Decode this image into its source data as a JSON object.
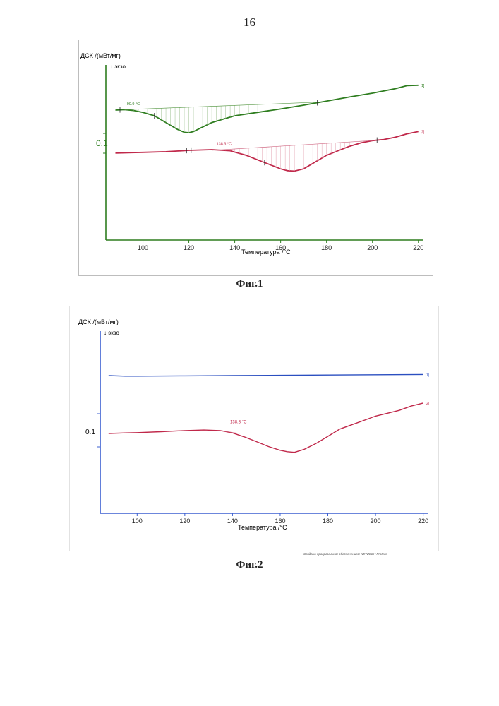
{
  "page_number": "16",
  "credit": "Создано программным обеспечением NETZSCH Proteus",
  "colors": {
    "curve1_fig1": "#2e7d1f",
    "curve2": "#c0284a",
    "curve1_fig2": "#2b4fc0",
    "axis_fig1": "#2e7d1f",
    "axis_fig2": "#3b5fd0"
  },
  "figures": [
    {
      "caption": "Фиг.1"
    },
    {
      "caption": "Фиг.2"
    }
  ],
  "chart_data": [
    {
      "type": "line",
      "ylabel": "ДСК /(мВт/мг)",
      "exo_label": "↓ экзо",
      "xlabel": "Температура /°C",
      "xlim": [
        86,
        221
      ],
      "xticks": [
        "100",
        "120",
        "140",
        "160",
        "180",
        "200",
        "220"
      ],
      "scale_label": "0.1",
      "annotations": [
        "90.9 °C",
        "138.3 °C"
      ],
      "series": [
        {
          "name": "[1]",
          "x": [
            88,
            92,
            96,
            100,
            105,
            110,
            115,
            118,
            120,
            122,
            125,
            130,
            135,
            140,
            150,
            160,
            170,
            180,
            190,
            200,
            210,
            215,
            220
          ],
          "y": [
            0.05,
            0.052,
            0.048,
            0.04,
            0.025,
            -0.005,
            -0.035,
            -0.048,
            -0.05,
            -0.045,
            -0.03,
            -0.005,
            0.01,
            0.025,
            0.04,
            0.055,
            0.072,
            0.09,
            0.108,
            0.125,
            0.145,
            0.158,
            0.16
          ]
        },
        {
          "name": "[2]",
          "x": [
            88,
            95,
            100,
            110,
            120,
            130,
            138,
            145,
            150,
            155,
            160,
            163,
            166,
            170,
            175,
            180,
            185,
            190,
            195,
            200,
            205,
            210,
            215,
            220
          ],
          "y": [
            -0.14,
            -0.138,
            -0.137,
            -0.134,
            -0.128,
            -0.125,
            -0.13,
            -0.15,
            -0.17,
            -0.19,
            -0.21,
            -0.218,
            -0.22,
            -0.21,
            -0.18,
            -0.15,
            -0.13,
            -0.11,
            -0.095,
            -0.085,
            -0.08,
            -0.07,
            -0.055,
            -0.045
          ]
        }
      ]
    },
    {
      "type": "line",
      "ylabel": "ДСК /(мВт/мг)",
      "exo_label": "↓ экзо",
      "xlabel": "Температура /°C",
      "xlim": [
        86,
        221
      ],
      "xticks": [
        "100",
        "120",
        "140",
        "160",
        "180",
        "200",
        "220"
      ],
      "scale_label": "0.1",
      "annotations": [
        "138.3 °C"
      ],
      "series": [
        {
          "name": "[1]",
          "x": [
            88,
            95,
            100,
            120,
            140,
            160,
            180,
            200,
            220
          ],
          "y": [
            0.0,
            -0.002,
            -0.002,
            -0.001,
            0.0,
            0.001,
            0.002,
            0.003,
            0.004
          ]
        },
        {
          "name": "[2]",
          "x": [
            88,
            95,
            100,
            110,
            120,
            128,
            135,
            140,
            145,
            150,
            155,
            160,
            163,
            166,
            170,
            175,
            180,
            185,
            190,
            195,
            200,
            205,
            210,
            215,
            220
          ],
          "y": [
            -0.2,
            -0.198,
            -0.197,
            -0.194,
            -0.19,
            -0.188,
            -0.19,
            -0.198,
            -0.212,
            -0.228,
            -0.245,
            -0.258,
            -0.263,
            -0.265,
            -0.255,
            -0.235,
            -0.21,
            -0.185,
            -0.17,
            -0.155,
            -0.14,
            -0.13,
            -0.12,
            -0.105,
            -0.095
          ]
        }
      ]
    }
  ]
}
